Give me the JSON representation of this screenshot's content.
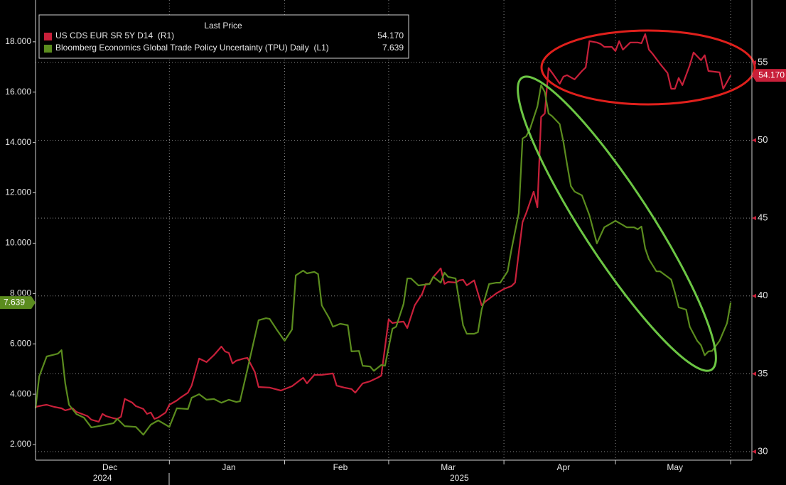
{
  "chart_data": {
    "type": "line",
    "legend_title": "Last Price",
    "xlim": [
      0,
      192.7
    ],
    "xticks": [
      {
        "value": 20,
        "label": "Dec"
      },
      {
        "value": 52,
        "label": "Jan"
      },
      {
        "value": 82,
        "label": "Feb"
      },
      {
        "value": 111,
        "label": "Mar"
      },
      {
        "value": 142,
        "label": "Apr"
      },
      {
        "value": 172,
        "label": "May"
      }
    ],
    "year_labels": [
      {
        "text": "2024",
        "x": 18
      },
      {
        "text": "2025",
        "x": 114
      }
    ],
    "xgrid": [
      36,
      67,
      95,
      126,
      156,
      187
    ],
    "ylim": [
      1.38,
      19.66
    ],
    "yticks": [
      {
        "value": 2,
        "label": "2.000"
      },
      {
        "value": 4,
        "label": "4.000"
      },
      {
        "value": 6,
        "label": "6.000"
      },
      {
        "value": 8,
        "label": "8.000"
      },
      {
        "value": 10,
        "label": "10.000"
      },
      {
        "value": 12,
        "label": "12.000"
      },
      {
        "value": 14,
        "label": "14.000"
      },
      {
        "value": 16,
        "label": "16.000"
      },
      {
        "value": 18,
        "label": "18.000"
      }
    ],
    "y2lim": [
      29.45,
      59.01
    ],
    "y2ticks": [
      30,
      35,
      40,
      45,
      50,
      55
    ],
    "grid": true,
    "series": [
      {
        "name": "US CDS EUR SR 5Y D14  (R1)",
        "color": "#c8203a",
        "axis": "y2",
        "last_label": "54.170",
        "x": [
          0,
          2,
          3,
          5,
          7,
          8,
          10,
          11,
          12,
          14,
          15,
          17,
          18,
          19,
          21,
          22,
          23,
          24,
          26,
          27,
          29,
          30,
          31,
          32,
          33,
          35,
          36,
          38,
          39,
          41,
          42,
          44,
          46,
          48,
          50,
          51,
          52,
          53,
          54,
          56,
          57,
          59,
          60,
          63,
          66,
          69,
          72,
          73,
          75,
          77,
          80,
          81,
          83,
          85,
          86,
          88,
          90,
          92,
          93,
          95,
          96,
          97,
          99,
          100,
          102,
          104,
          105,
          106,
          107,
          109,
          110,
          111,
          113,
          114,
          115,
          116,
          118,
          120,
          121,
          123,
          124,
          126,
          128,
          129,
          131,
          132,
          134,
          135,
          136,
          137,
          138,
          139,
          141,
          142,
          143,
          145,
          147,
          148,
          149,
          151,
          152,
          153,
          155,
          156,
          157,
          158,
          160,
          162,
          163,
          164,
          165,
          166,
          168,
          170,
          171,
          172,
          173,
          174,
          176,
          177,
          179,
          180,
          181,
          184,
          185,
          187
        ],
        "values": [
          32.87,
          32.97,
          33.01,
          32.87,
          32.78,
          32.65,
          32.78,
          32.55,
          32.46,
          32.28,
          32.05,
          31.92,
          32.42,
          32.28,
          32.14,
          32.1,
          32.24,
          33.38,
          33.15,
          32.92,
          32.74,
          32.42,
          32.51,
          32.1,
          32.19,
          32.51,
          33.01,
          33.28,
          33.47,
          33.79,
          34.24,
          35.98,
          35.75,
          36.2,
          36.75,
          36.43,
          36.34,
          35.66,
          35.84,
          35.98,
          36.02,
          35.11,
          34.15,
          34.11,
          33.92,
          34.2,
          34.74,
          34.38,
          34.93,
          34.93,
          35.02,
          34.24,
          34.11,
          34.02,
          33.79,
          34.38,
          34.52,
          34.74,
          34.88,
          38.49,
          38.26,
          38.3,
          38.35,
          37.94,
          39.4,
          40.13,
          40.77,
          40.77,
          41.22,
          41.77,
          40.77,
          40.9,
          40.86,
          41.0,
          41.04,
          40.68,
          41.0,
          39.4,
          39.63,
          39.99,
          40.17,
          40.45,
          40.63,
          40.86,
          44.74,
          45.33,
          46.7,
          45.69,
          51.49,
          51.72,
          54.64,
          54.32,
          53.63,
          54.09,
          54.18,
          53.91,
          54.45,
          54.68,
          56.37,
          56.28,
          56.19,
          56.0,
          56.0,
          55.73,
          56.37,
          55.82,
          56.28,
          56.28,
          56.23,
          56.82,
          55.82,
          55.55,
          54.91,
          54.32,
          53.31,
          53.31,
          54.0,
          53.54,
          54.82,
          55.64,
          55.14,
          55.46,
          54.45,
          54.36,
          53.31,
          54.17
        ]
      },
      {
        "name": "Bloomberg Economics Global Trade Policy Uncertainty (TPU) Daily  (L1)",
        "color": "#5b8c1e",
        "axis": "y",
        "last_label": "7.639",
        "x": [
          0,
          1,
          3,
          6,
          7,
          8,
          9,
          11,
          13,
          15,
          18,
          21,
          22,
          24,
          27,
          29,
          31,
          33,
          36,
          38,
          41,
          42,
          44,
          46,
          48,
          50,
          52,
          54,
          55,
          57,
          60,
          62,
          63,
          65,
          67,
          69,
          70,
          72,
          73,
          75,
          76,
          77,
          79,
          80,
          82,
          84,
          85,
          87,
          88,
          90,
          91,
          93,
          94,
          96,
          97,
          99,
          100,
          101,
          103,
          106,
          107,
          109,
          110,
          111,
          113,
          115,
          116,
          118,
          119,
          120,
          122,
          124,
          125,
          127,
          128,
          130,
          131,
          132,
          133,
          135,
          136,
          137,
          138,
          139,
          141,
          142,
          143,
          144,
          145,
          147,
          149,
          151,
          153,
          155,
          156,
          158,
          159,
          161,
          162,
          163,
          164,
          165,
          167,
          168,
          170,
          171,
          172,
          173,
          175,
          176,
          178,
          179,
          180,
          181,
          182,
          184,
          186,
          187
        ],
        "values": [
          3.44,
          4.71,
          5.5,
          5.61,
          5.75,
          4.43,
          3.58,
          3.21,
          3.07,
          2.68,
          2.76,
          2.85,
          3.02,
          2.73,
          2.7,
          2.39,
          2.79,
          2.96,
          2.7,
          3.44,
          3.41,
          3.86,
          4.0,
          3.78,
          3.81,
          3.66,
          3.78,
          3.69,
          3.72,
          4.99,
          6.94,
          7.02,
          6.99,
          6.54,
          6.12,
          6.57,
          8.72,
          8.91,
          8.8,
          8.86,
          8.77,
          7.53,
          7.02,
          6.68,
          6.8,
          6.74,
          5.7,
          5.72,
          5.13,
          5.1,
          4.93,
          5.16,
          5.13,
          6.6,
          6.68,
          7.59,
          8.6,
          8.6,
          8.32,
          8.38,
          8.66,
          8.43,
          8.83,
          8.66,
          8.6,
          6.74,
          6.4,
          6.4,
          6.46,
          7.36,
          8.38,
          8.43,
          8.43,
          8.88,
          9.73,
          11.2,
          14.16,
          14.25,
          14.53,
          15.43,
          16.28,
          16.0,
          15.15,
          15.04,
          14.73,
          14.02,
          13.12,
          12.27,
          12.05,
          11.9,
          11.11,
          9.99,
          10.63,
          10.8,
          10.89,
          10.72,
          10.63,
          10.63,
          10.55,
          10.66,
          9.79,
          9.36,
          8.88,
          8.88,
          8.66,
          8.55,
          8.04,
          7.45,
          7.36,
          6.68,
          6.12,
          5.95,
          5.55,
          5.7,
          5.72,
          6.12,
          6.82,
          7.639
        ]
      }
    ]
  }
}
